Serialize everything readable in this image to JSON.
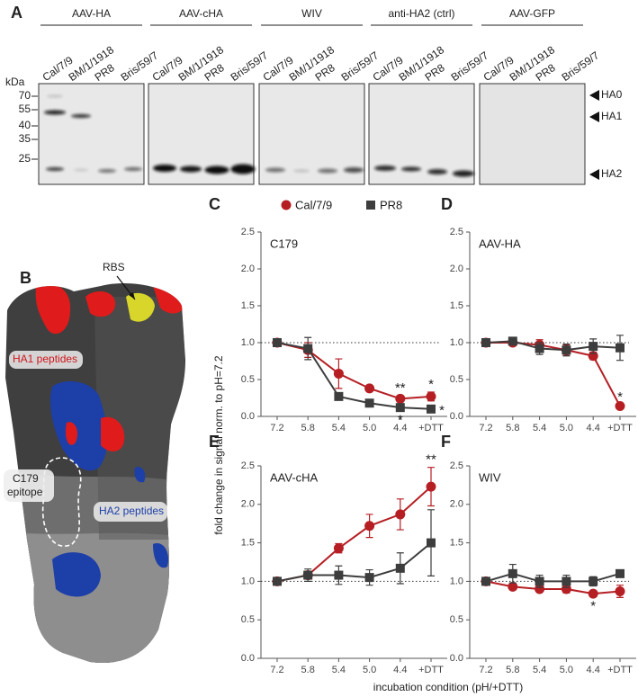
{
  "blot": {
    "panel": "A",
    "groups": [
      "AAV-HA",
      "AAV-cHA",
      "WIV",
      "anti-HA2 (ctrl)",
      "AAV-GFP"
    ],
    "lanes": [
      "Cal/7/9",
      "BM/1/1918",
      "PR8",
      "Bris/59/7"
    ],
    "kda_label": "kDa",
    "markers": [
      70,
      55,
      40,
      35,
      25
    ],
    "band_labels": [
      "HA0",
      "HA1",
      "HA2"
    ]
  },
  "structure": {
    "panel": "B",
    "rbs_label": "RBS",
    "ha1_label": "HA1 peptides",
    "epitope_label": [
      "C179",
      "epitope"
    ],
    "ha2_label": "HA2 peptides"
  },
  "figure_axes": {
    "ylabel": "fold change in signal norm. to pH=7.2",
    "xlabel": "incubation condition (pH/+DTT)"
  },
  "chart_data": [
    {
      "type": "line",
      "panel": "C",
      "title": "C179",
      "categories": [
        "7.2",
        "5.8",
        "5.4",
        "5.0",
        "4.4",
        "+DTT"
      ],
      "ylim": [
        0,
        2.5
      ],
      "yticks": [
        {
          "value": 0,
          "label": "0.0"
        },
        {
          "value": 0.5,
          "label": "0.5"
        },
        {
          "value": 1,
          "label": "1.0"
        },
        {
          "value": 1.5,
          "label": "1.5"
        },
        {
          "value": 2,
          "label": "2.0"
        },
        {
          "value": 2.5,
          "label": "2.5"
        }
      ],
      "reference_line": 1,
      "series": [
        {
          "name": "Cal/7/9",
          "color": "#b51f24",
          "marker": "circle",
          "values": [
            1.0,
            0.9,
            0.58,
            0.38,
            0.24,
            0.27
          ],
          "errors": [
            0.02,
            0.1,
            0.2,
            0.03,
            0.04,
            0.06
          ]
        },
        {
          "name": "PR8",
          "color": "#3d3d3d",
          "marker": "square",
          "values": [
            1.0,
            0.92,
            0.27,
            0.18,
            0.12,
            0.1
          ],
          "errors": [
            0.02,
            0.15,
            0.03,
            0.03,
            0.03,
            0.05
          ]
        }
      ],
      "annotations": [
        {
          "text": "**",
          "series": 0,
          "index": 4,
          "side": "above"
        },
        {
          "text": "*",
          "series": 0,
          "index": 5,
          "side": "above"
        },
        {
          "text": "*",
          "series": 1,
          "index": 4,
          "side": "below"
        },
        {
          "text": "*",
          "series": 1,
          "index": 5,
          "side": "right"
        }
      ]
    },
    {
      "type": "line",
      "panel": "D",
      "title": "AAV-HA",
      "categories": [
        "7.2",
        "5.8",
        "5.4",
        "5.0",
        "4.4",
        "+DTT"
      ],
      "ylim": [
        0,
        2.5
      ],
      "yticks": [
        {
          "value": 0,
          "label": "0.0"
        },
        {
          "value": 0.5,
          "label": "0.5"
        },
        {
          "value": 1,
          "label": "1.0"
        },
        {
          "value": 1.5,
          "label": "1.5"
        },
        {
          "value": 2,
          "label": "2.0"
        },
        {
          "value": 2.5,
          "label": "2.5"
        }
      ],
      "reference_line": 1,
      "series": [
        {
          "color": "#b51f24",
          "marker": "circle",
          "values": [
            1.0,
            1.0,
            0.97,
            0.9,
            0.82,
            0.14
          ],
          "errors": [
            0.02,
            0.03,
            0.07,
            0.07,
            0.05,
            0.02
          ]
        },
        {
          "color": "#3d3d3d",
          "marker": "square",
          "values": [
            1.0,
            1.02,
            0.92,
            0.9,
            0.95,
            0.93
          ],
          "errors": [
            0.02,
            0.03,
            0.08,
            0.08,
            0.1,
            0.17
          ]
        }
      ],
      "annotations": [
        {
          "text": "*",
          "series": 0,
          "index": 5,
          "side": "above"
        }
      ]
    },
    {
      "type": "line",
      "panel": "E",
      "title": "AAV-cHA",
      "categories": [
        "7.2",
        "5.8",
        "5.4",
        "5.0",
        "4.4",
        "+DTT"
      ],
      "ylim": [
        0,
        2.5
      ],
      "yticks": [
        {
          "value": 0,
          "label": "0.0"
        },
        {
          "value": 0.5,
          "label": "0.5"
        },
        {
          "value": 1,
          "label": "1.0"
        },
        {
          "value": 1.5,
          "label": "1.5"
        },
        {
          "value": 2,
          "label": "2.0"
        },
        {
          "value": 2.5,
          "label": "2.5"
        }
      ],
      "reference_line": 1,
      "series": [
        {
          "color": "#b51f24",
          "marker": "circle",
          "values": [
            1.0,
            1.08,
            1.43,
            1.72,
            1.87,
            2.23
          ],
          "errors": [
            0.02,
            0.05,
            0.06,
            0.15,
            0.2,
            0.25
          ]
        },
        {
          "color": "#3d3d3d",
          "marker": "square",
          "values": [
            1.0,
            1.08,
            1.08,
            1.05,
            1.17,
            1.5
          ],
          "errors": [
            0.02,
            0.08,
            0.12,
            0.1,
            0.2,
            0.43
          ]
        }
      ],
      "annotations": [
        {
          "text": "**",
          "series": 0,
          "index": 5,
          "side": "above"
        }
      ]
    },
    {
      "type": "line",
      "panel": "F",
      "title": "WIV",
      "categories": [
        "7.2",
        "5.8",
        "5.4",
        "5.0",
        "4.4",
        "+DTT"
      ],
      "ylim": [
        0,
        2.5
      ],
      "yticks": [
        {
          "value": 0,
          "label": "0.0"
        },
        {
          "value": 0.5,
          "label": "0.5"
        },
        {
          "value": 1,
          "label": "1.0"
        },
        {
          "value": 1.5,
          "label": "1.5"
        },
        {
          "value": 2,
          "label": "2.0"
        },
        {
          "value": 2.5,
          "label": "2.5"
        }
      ],
      "reference_line": 1,
      "series": [
        {
          "color": "#b51f24",
          "marker": "circle",
          "values": [
            1.0,
            0.93,
            0.9,
            0.9,
            0.84,
            0.87
          ],
          "errors": [
            0.02,
            0.03,
            0.03,
            0.05,
            0.03,
            0.08
          ]
        },
        {
          "color": "#3d3d3d",
          "marker": "square",
          "values": [
            1.0,
            1.1,
            1.0,
            1.0,
            1.0,
            1.1
          ],
          "errors": [
            0.02,
            0.12,
            0.08,
            0.08,
            0.06,
            0.04
          ]
        }
      ],
      "annotations": [
        {
          "text": "*",
          "series": 0,
          "index": 4,
          "side": "below"
        }
      ]
    }
  ]
}
